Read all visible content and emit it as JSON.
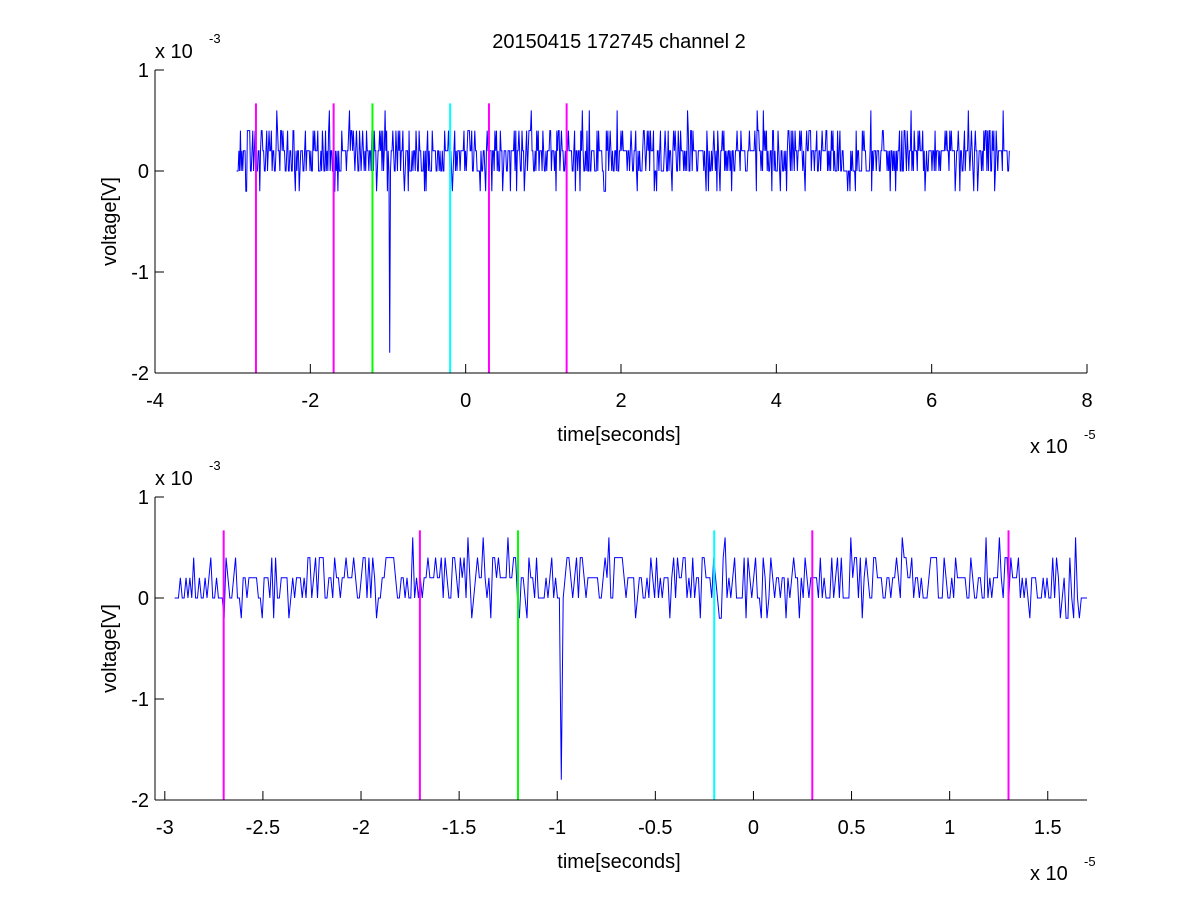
{
  "figure": {
    "title": "20150415 172745 channel 2"
  },
  "chart_data": [
    {
      "type": "line",
      "xlabel": "time[seconds]",
      "ylabel": "voltage[V]",
      "x_exponent_label": "x 10",
      "x_exponent_power": "-5",
      "y_exponent_label": "x 10",
      "y_exponent_power": "-3",
      "xlim": [
        -4,
        8
      ],
      "ylim": [
        -2,
        1
      ],
      "x_ticks": [
        -4,
        -2,
        0,
        2,
        4,
        6,
        8
      ],
      "x_tick_labels": [
        "-4",
        "-2",
        "0",
        "2",
        "4",
        "6",
        "8"
      ],
      "y_ticks": [
        -2,
        -1,
        0,
        1
      ],
      "y_tick_labels": [
        "-2",
        "-1",
        "0",
        "1"
      ],
      "grid": false,
      "series": [
        {
          "color": "#0000ff",
          "x_range": [
            -2.95,
            7.0
          ],
          "baseline_levels": [
            0,
            0.2,
            0.4
          ],
          "occasional_dips": [
            -0.2
          ],
          "spike": {
            "x": -0.98,
            "ymin": -1.8
          }
        }
      ],
      "markers": [
        {
          "x": -2.7,
          "color": "#ff00ff"
        },
        {
          "x": -1.7,
          "color": "#ff00ff"
        },
        {
          "x": -1.2,
          "color": "#00ff00"
        },
        {
          "x": -0.2,
          "color": "#00ffff"
        },
        {
          "x": 0.3,
          "color": "#ff00ff"
        },
        {
          "x": 1.3,
          "color": "#ff00ff"
        }
      ],
      "marker_ytop": 0.67
    },
    {
      "type": "line",
      "xlabel": "time[seconds]",
      "ylabel": "voltage[V]",
      "x_exponent_label": "x 10",
      "x_exponent_power": "-5",
      "y_exponent_label": "x 10",
      "y_exponent_power": "-3",
      "xlim": [
        -3.05,
        1.7
      ],
      "ylim": [
        -2,
        1
      ],
      "x_ticks": [
        -3,
        -2.5,
        -2,
        -1.5,
        -1,
        -0.5,
        0,
        0.5,
        1,
        1.5
      ],
      "x_tick_labels": [
        "-3",
        "-2.5",
        "-2",
        "-1.5",
        "-1",
        "-0.5",
        "0",
        "0.5",
        "1",
        "1.5"
      ],
      "y_ticks": [
        -2,
        -1,
        0,
        1
      ],
      "y_tick_labels": [
        "-2",
        "-1",
        "0",
        "1"
      ],
      "grid": false,
      "series": [
        {
          "color": "#0000ff",
          "x_range": [
            -2.95,
            1.7
          ],
          "baseline_levels": [
            0,
            0.2,
            0.4
          ],
          "occasional_dips": [
            -0.2
          ],
          "spike": {
            "x": -0.98,
            "ymin": -1.8
          }
        }
      ],
      "markers": [
        {
          "x": -2.7,
          "color": "#ff00ff"
        },
        {
          "x": -1.7,
          "color": "#ff00ff"
        },
        {
          "x": -1.2,
          "color": "#00ff00"
        },
        {
          "x": -0.2,
          "color": "#00ffff"
        },
        {
          "x": 0.3,
          "color": "#ff00ff"
        },
        {
          "x": 1.3,
          "color": "#ff00ff"
        }
      ],
      "marker_ytop": 0.67
    }
  ]
}
